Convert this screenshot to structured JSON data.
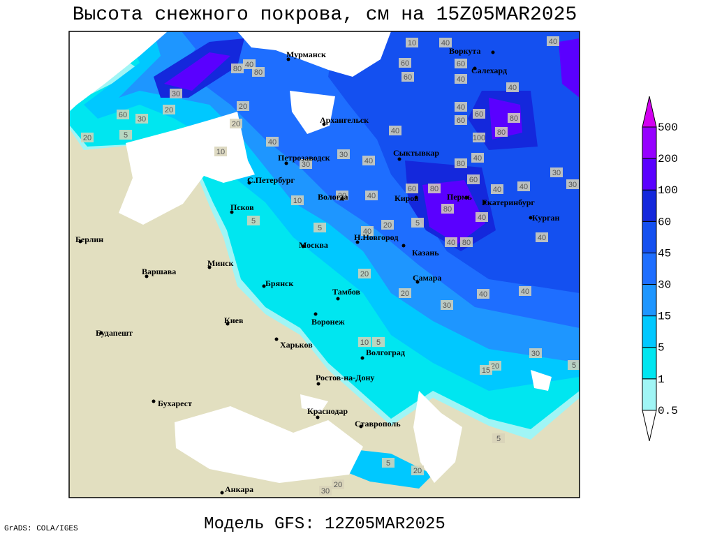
{
  "title": "Высота снежного покрова, см на 15Z05MAR2025",
  "footer": {
    "credit": "GrADS: COLA/IGES",
    "model": "Модель GFS: 12Z05MAR2025"
  },
  "legend": {
    "levels": [
      0.5,
      1,
      5,
      15,
      30,
      45,
      60,
      100,
      200,
      500
    ],
    "colors": [
      "#ffffff",
      "#a0f5f5",
      "#00e6f0",
      "#00c8ff",
      "#1e96ff",
      "#1e6eff",
      "#1450f0",
      "#1428dc",
      "#5a00ff",
      "#9600ff",
      "#d200f0"
    ]
  },
  "cities": [
    "Мурманск",
    "Воркута",
    "Салехард",
    "Архангельск",
    "Сыктывкар",
    "Петрозаводск",
    "С.Петербург",
    "Вологда",
    "Киров",
    "Пермь",
    "Екатеринбург",
    "Курган",
    "Псков",
    "Берлин",
    "Варшава",
    "Минск",
    "Москва",
    "Н.Новгород",
    "Казань",
    "Брянск",
    "Тамбов",
    "Самара",
    "Киев",
    "Воронеж",
    "Будапешт",
    "Харьков",
    "Волгоград",
    "Ростов-на-Дону",
    "Бухарест",
    "Краснодар",
    "Ставрополь",
    "Анкара"
  ],
  "contour_labels": [
    10,
    40,
    40,
    40,
    80,
    80,
    60,
    60,
    40,
    60,
    30,
    40,
    60,
    20,
    30,
    5,
    20,
    20,
    20,
    40,
    10,
    40,
    40,
    60,
    60,
    100,
    80,
    80,
    40,
    30,
    30,
    40,
    80,
    30,
    40,
    60,
    80,
    60,
    40,
    30,
    10,
    20,
    40,
    80,
    40,
    5,
    5,
    40,
    20,
    5,
    40,
    80,
    40,
    20,
    20,
    40,
    40,
    30,
    10,
    5,
    30,
    20,
    5,
    5,
    5,
    20,
    20,
    30,
    15
  ]
}
